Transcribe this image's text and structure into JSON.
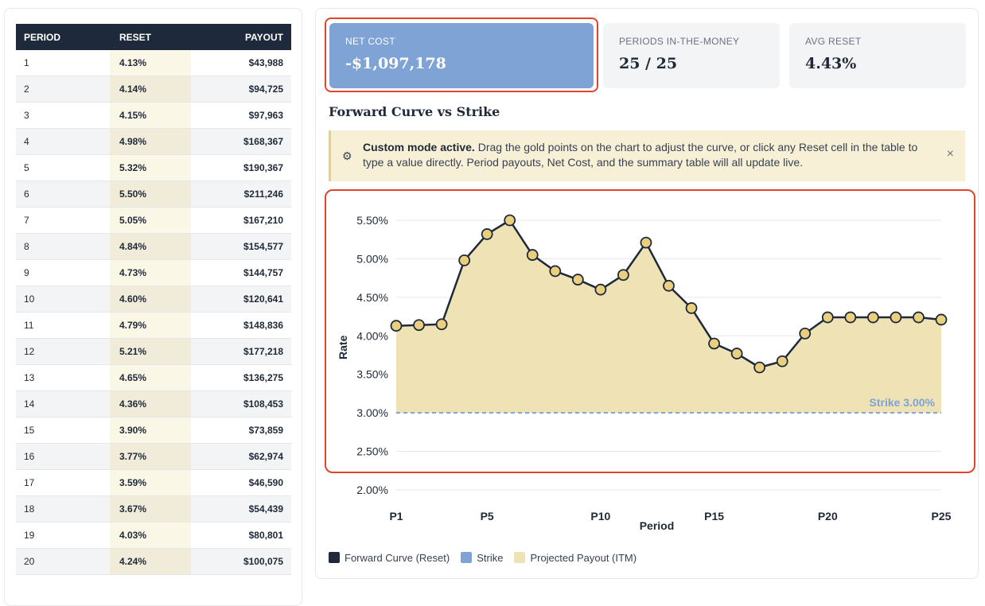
{
  "table": {
    "headers": {
      "period": "PERIOD",
      "reset": "RESET",
      "payout": "PAYOUT"
    },
    "rows": [
      {
        "period": "1",
        "reset": "4.13%",
        "payout": "$43,988"
      },
      {
        "period": "2",
        "reset": "4.14%",
        "payout": "$94,725"
      },
      {
        "period": "3",
        "reset": "4.15%",
        "payout": "$97,963"
      },
      {
        "period": "4",
        "reset": "4.98%",
        "payout": "$168,367"
      },
      {
        "period": "5",
        "reset": "5.32%",
        "payout": "$190,367"
      },
      {
        "period": "6",
        "reset": "5.50%",
        "payout": "$211,246"
      },
      {
        "period": "7",
        "reset": "5.05%",
        "payout": "$167,210"
      },
      {
        "period": "8",
        "reset": "4.84%",
        "payout": "$154,577"
      },
      {
        "period": "9",
        "reset": "4.73%",
        "payout": "$144,757"
      },
      {
        "period": "10",
        "reset": "4.60%",
        "payout": "$120,641"
      },
      {
        "period": "11",
        "reset": "4.79%",
        "payout": "$148,836"
      },
      {
        "period": "12",
        "reset": "5.21%",
        "payout": "$177,218"
      },
      {
        "period": "13",
        "reset": "4.65%",
        "payout": "$136,275"
      },
      {
        "period": "14",
        "reset": "4.36%",
        "payout": "$108,453"
      },
      {
        "period": "15",
        "reset": "3.90%",
        "payout": "$73,859"
      },
      {
        "period": "16",
        "reset": "3.77%",
        "payout": "$62,974"
      },
      {
        "period": "17",
        "reset": "3.59%",
        "payout": "$46,590"
      },
      {
        "period": "18",
        "reset": "3.67%",
        "payout": "$54,439"
      },
      {
        "period": "19",
        "reset": "4.03%",
        "payout": "$80,801"
      },
      {
        "period": "20",
        "reset": "4.24%",
        "payout": "$100,075"
      }
    ]
  },
  "kpis": {
    "net_cost": {
      "label": "NET COST",
      "value": "-$1,097,178"
    },
    "periods_itm": {
      "label": "PERIODS IN-THE-MONEY",
      "value": "25 / 25"
    },
    "avg_reset": {
      "label": "AVG RESET",
      "value": "4.43%"
    }
  },
  "chart_section_title": "Forward Curve vs Strike",
  "notice": {
    "bold": "Custom mode active.",
    "text": " Drag the gold points on the chart to adjust the curve, or click any Reset cell in the table to type a value directly. Period payouts, Net Cost, and the summary table will all update live.",
    "close": "×",
    "icon": "gear-icon"
  },
  "colors": {
    "curve": "#1e2a3b",
    "strike": "#7ea3d4",
    "payout_fill": "#efe3b5",
    "point_fill": "#e9cf7e",
    "highlight": "#e0452c"
  },
  "chart_data": {
    "type": "area",
    "xlabel": "Period",
    "ylabel": "Rate",
    "x": [
      "P1",
      "P2",
      "P3",
      "P4",
      "P5",
      "P6",
      "P7",
      "P8",
      "P9",
      "P10",
      "P11",
      "P12",
      "P13",
      "P14",
      "P15",
      "P16",
      "P17",
      "P18",
      "P19",
      "P20",
      "P21",
      "P22",
      "P23",
      "P24",
      "P25"
    ],
    "x_tick_labels": [
      "P1",
      "P5",
      "P10",
      "P15",
      "P20",
      "P25"
    ],
    "ylim": [
      2.0,
      5.5
    ],
    "y_ticks": [
      "2.00%",
      "2.50%",
      "3.00%",
      "3.50%",
      "4.00%",
      "4.50%",
      "5.00%",
      "5.50%"
    ],
    "y_tick_values": [
      2.0,
      2.5,
      3.0,
      3.5,
      4.0,
      4.5,
      5.0,
      5.5
    ],
    "series": [
      {
        "name": "Forward Curve (Reset)",
        "values": [
          4.13,
          4.14,
          4.15,
          4.98,
          5.32,
          5.5,
          5.05,
          4.84,
          4.73,
          4.6,
          4.79,
          5.21,
          4.65,
          4.36,
          3.9,
          3.77,
          3.59,
          3.67,
          4.03,
          4.24,
          4.24,
          4.24,
          4.24,
          4.24,
          4.21
        ]
      },
      {
        "name": "Strike",
        "values": [
          3.0,
          3.0,
          3.0,
          3.0,
          3.0,
          3.0,
          3.0,
          3.0,
          3.0,
          3.0,
          3.0,
          3.0,
          3.0,
          3.0,
          3.0,
          3.0,
          3.0,
          3.0,
          3.0,
          3.0,
          3.0,
          3.0,
          3.0,
          3.0,
          3.0
        ]
      }
    ],
    "strike_label": "Strike 3.00%",
    "legend": [
      "Forward Curve (Reset)",
      "Strike",
      "Projected Payout (ITM)"
    ],
    "legend_position": "bottom-left",
    "grid": true
  }
}
